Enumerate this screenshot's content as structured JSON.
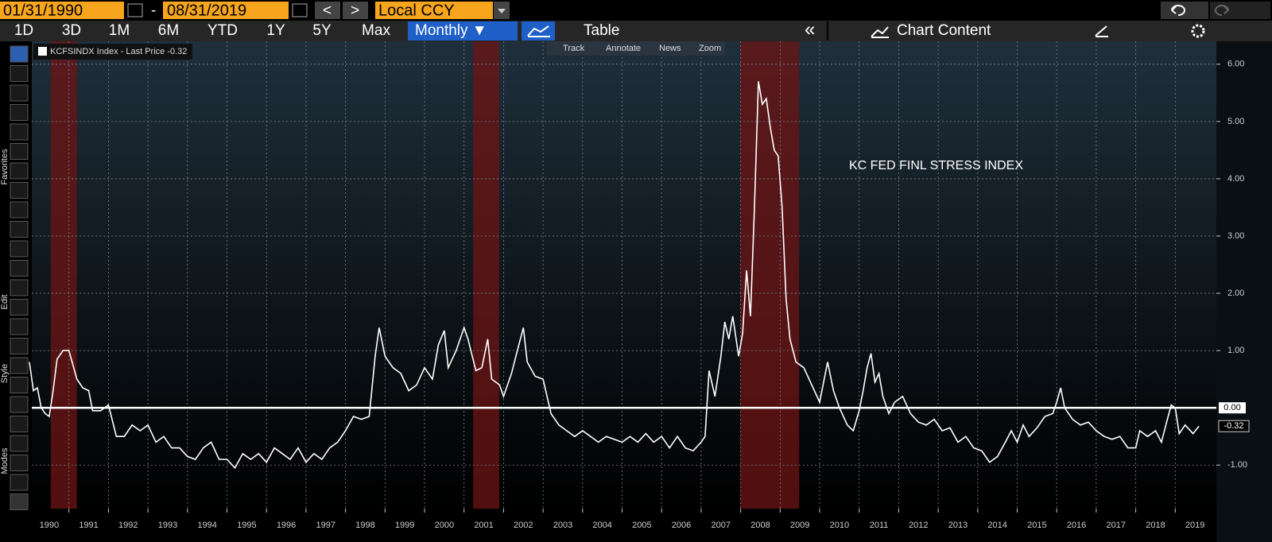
{
  "toolbar": {
    "start_date": "01/31/1990",
    "dash": "-",
    "end_date": "08/31/2019",
    "currency": "Local CCY",
    "prev": "<",
    "next": ">",
    "periods": [
      "1D",
      "3D",
      "1M",
      "6M",
      "YTD",
      "1Y",
      "5Y",
      "Max"
    ],
    "frequency": "Monthly ▼",
    "table": "Table",
    "collapse": "«",
    "chart_content": "Chart Content"
  },
  "chart_tools": [
    "Track",
    "Annotate",
    "News",
    "Zoom"
  ],
  "side_labels": [
    "Favorites",
    "Edit",
    "Style",
    "Modes"
  ],
  "chart_data": {
    "type": "line",
    "legend": "KCFSINDX Index - Last Price -0.32",
    "annotation": "KC FED FINL STRESS INDEX",
    "x": [
      1990.0,
      1990.1,
      1990.2,
      1990.3,
      1990.4,
      1990.5,
      1990.6,
      1990.7,
      1990.85,
      1991.0,
      1991.2,
      1991.35,
      1991.5,
      1991.6,
      1991.8,
      1992.0,
      1992.2,
      1992.4,
      1992.6,
      1992.8,
      1993.0,
      1993.2,
      1993.4,
      1993.6,
      1993.8,
      1994.0,
      1994.2,
      1994.4,
      1994.6,
      1994.8,
      1995.0,
      1995.2,
      1995.4,
      1995.6,
      1995.8,
      1996.0,
      1996.2,
      1996.4,
      1996.6,
      1996.8,
      1997.0,
      1997.2,
      1997.4,
      1997.6,
      1997.8,
      1998.0,
      1998.2,
      1998.4,
      1998.6,
      1998.75,
      1998.85,
      1999.0,
      1999.2,
      1999.4,
      1999.6,
      1999.8,
      2000.0,
      2000.2,
      2000.35,
      2000.5,
      2000.6,
      2000.8,
      2001.0,
      2001.1,
      2001.3,
      2001.45,
      2001.6,
      2001.7,
      2001.9,
      2002.0,
      2002.2,
      2002.35,
      2002.5,
      2002.6,
      2002.8,
      2003.0,
      2003.2,
      2003.4,
      2003.6,
      2003.8,
      2004.0,
      2004.2,
      2004.4,
      2004.6,
      2004.8,
      2005.0,
      2005.2,
      2005.4,
      2005.6,
      2005.8,
      2006.0,
      2006.2,
      2006.4,
      2006.6,
      2006.8,
      2007.0,
      2007.1,
      2007.2,
      2007.35,
      2007.5,
      2007.6,
      2007.7,
      2007.8,
      2007.95,
      2008.05,
      2008.15,
      2008.25,
      2008.35,
      2008.45,
      2008.55,
      2008.65,
      2008.75,
      2008.85,
      2008.95,
      2009.05,
      2009.15,
      2009.25,
      2009.4,
      2009.6,
      2009.8,
      2010.0,
      2010.2,
      2010.35,
      2010.5,
      2010.7,
      2010.85,
      2011.0,
      2011.1,
      2011.2,
      2011.3,
      2011.4,
      2011.5,
      2011.6,
      2011.75,
      2011.9,
      2012.1,
      2012.3,
      2012.5,
      2012.7,
      2012.9,
      2013.1,
      2013.3,
      2013.5,
      2013.7,
      2013.9,
      2014.1,
      2014.3,
      2014.5,
      2014.7,
      2014.85,
      2015.0,
      2015.15,
      2015.3,
      2015.5,
      2015.7,
      2015.9,
      2016.0,
      2016.1,
      2016.2,
      2016.4,
      2016.6,
      2016.8,
      2017.0,
      2017.2,
      2017.4,
      2017.6,
      2017.8,
      2018.0,
      2018.1,
      2018.3,
      2018.5,
      2018.65,
      2018.8,
      2018.9,
      2019.0,
      2019.1,
      2019.25,
      2019.45,
      2019.6
    ],
    "series": [
      {
        "name": "KCFSINDX Index",
        "color": "#ffffff",
        "values": [
          0.8,
          0.3,
          0.35,
          0.0,
          -0.1,
          -0.15,
          0.3,
          0.85,
          1.0,
          1.0,
          0.5,
          0.35,
          0.3,
          -0.05,
          -0.05,
          0.05,
          -0.5,
          -0.5,
          -0.3,
          -0.4,
          -0.3,
          -0.6,
          -0.5,
          -0.7,
          -0.7,
          -0.85,
          -0.9,
          -0.7,
          -0.6,
          -0.9,
          -0.9,
          -1.05,
          -0.8,
          -0.9,
          -0.8,
          -0.95,
          -0.7,
          -0.8,
          -0.9,
          -0.7,
          -0.95,
          -0.8,
          -0.9,
          -0.7,
          -0.6,
          -0.4,
          -0.15,
          -0.2,
          -0.15,
          0.9,
          1.4,
          0.9,
          0.7,
          0.6,
          0.3,
          0.4,
          0.7,
          0.5,
          1.1,
          1.35,
          0.7,
          1.0,
          1.4,
          1.2,
          0.65,
          0.7,
          1.2,
          0.5,
          0.4,
          0.2,
          0.6,
          1.0,
          1.4,
          0.8,
          0.55,
          0.5,
          -0.1,
          -0.3,
          -0.4,
          -0.5,
          -0.4,
          -0.5,
          -0.6,
          -0.5,
          -0.55,
          -0.6,
          -0.5,
          -0.6,
          -0.45,
          -0.6,
          -0.5,
          -0.7,
          -0.5,
          -0.7,
          -0.75,
          -0.6,
          -0.5,
          0.65,
          0.2,
          0.9,
          1.5,
          1.2,
          1.6,
          0.9,
          1.3,
          2.4,
          1.6,
          3.5,
          5.7,
          5.3,
          5.4,
          4.9,
          4.5,
          4.4,
          3.5,
          1.9,
          1.2,
          0.8,
          0.7,
          0.4,
          0.1,
          0.8,
          0.3,
          0.0,
          -0.3,
          -0.4,
          -0.05,
          0.3,
          0.7,
          0.95,
          0.45,
          0.6,
          0.2,
          -0.1,
          0.1,
          0.2,
          -0.1,
          -0.25,
          -0.3,
          -0.2,
          -0.4,
          -0.35,
          -0.6,
          -0.5,
          -0.7,
          -0.75,
          -0.95,
          -0.85,
          -0.6,
          -0.4,
          -0.6,
          -0.3,
          -0.5,
          -0.35,
          -0.15,
          -0.1,
          0.1,
          0.35,
          0.0,
          -0.2,
          -0.3,
          -0.25,
          -0.4,
          -0.5,
          -0.55,
          -0.5,
          -0.7,
          -0.7,
          -0.4,
          -0.5,
          -0.4,
          -0.6,
          -0.2,
          0.05,
          0.0,
          -0.45,
          -0.3,
          -0.45,
          -0.32
        ]
      }
    ],
    "last_value_label": "-0.32",
    "recession_bands": [
      [
        1990.54,
        1991.2
      ],
      [
        2001.23,
        2001.89
      ],
      [
        2007.99,
        2009.48
      ]
    ],
    "hline": {
      "value": 0,
      "label": "0.00"
    },
    "xlim": [
      1990.06,
      2020.04
    ],
    "xticks": [
      1991,
      1992,
      1993,
      1994,
      1995,
      1996,
      1997,
      1998,
      1999,
      2000,
      2001,
      2002,
      2003,
      2004,
      2005,
      2006,
      2007,
      2008,
      2009,
      2010,
      2011,
      2012,
      2013,
      2014,
      2015,
      2016,
      2017,
      2018,
      2019
    ],
    "year_labels": [
      1990,
      1991,
      1992,
      1993,
      1994,
      1995,
      1996,
      1997,
      1998,
      1999,
      2000,
      2001,
      2002,
      2003,
      2004,
      2005,
      2006,
      2007,
      2008,
      2009,
      2010,
      2011,
      2012,
      2013,
      2014,
      2015,
      2016,
      2017,
      2018,
      2019
    ],
    "ylim": [
      -1.76,
      6.4
    ],
    "yticks": [
      {
        "value": -1,
        "label": "-1.00"
      },
      {
        "value": 1,
        "label": "1.00"
      },
      {
        "value": 2,
        "label": "2.00"
      },
      {
        "value": 3,
        "label": "3.00"
      },
      {
        "value": 4,
        "label": "4.00"
      },
      {
        "value": 5,
        "label": "5.00"
      },
      {
        "value": 6,
        "label": "6.00"
      }
    ],
    "grid": true
  }
}
